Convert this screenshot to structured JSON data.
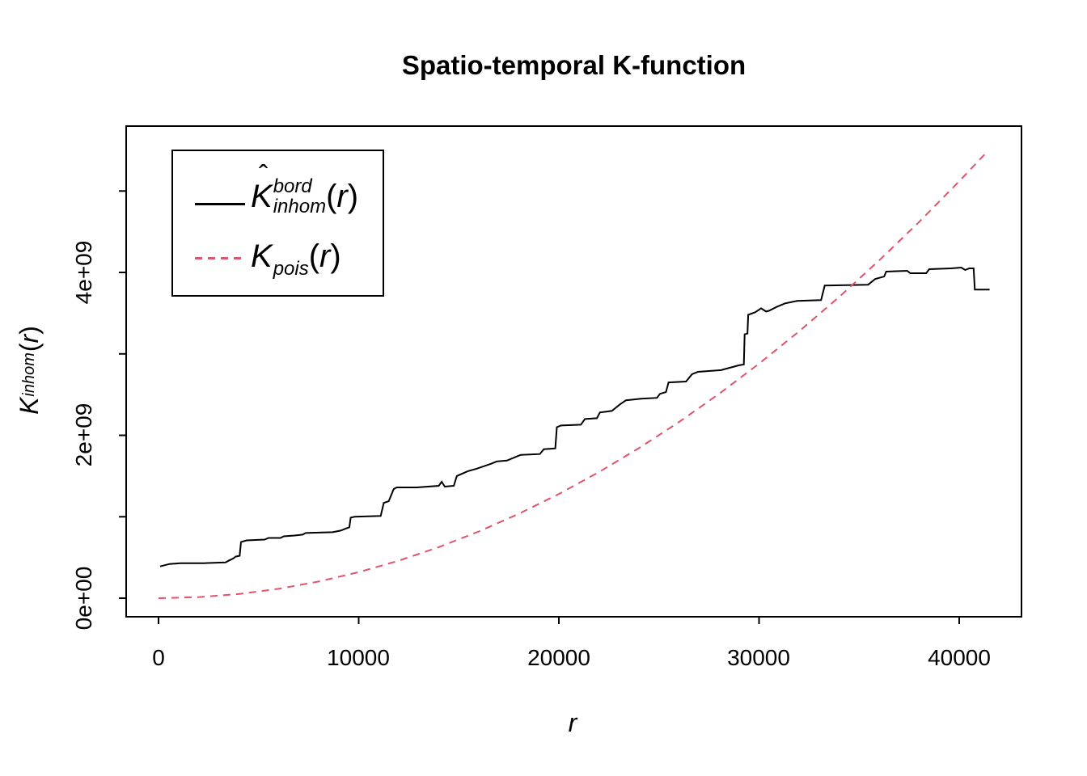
{
  "figure": {
    "background": "#ffffff",
    "frame_color": "#000000"
  },
  "chart_data": {
    "type": "line",
    "title": "Spatio-temporal K-function",
    "xlabel": "r",
    "ylabel": "K[inhom](r)",
    "grid": false,
    "legend_position": "topleft",
    "x_axis": {
      "min": -1617,
      "max": 43111,
      "ticks": [
        {
          "value": 0,
          "label": "0"
        },
        {
          "value": 10000,
          "label": "10000"
        },
        {
          "value": 20000,
          "label": "20000"
        },
        {
          "value": 30000,
          "label": "30000"
        },
        {
          "value": 40000,
          "label": "40000"
        }
      ]
    },
    "y_axis": {
      "min": -228000000,
      "max": 5797000000,
      "ticks": [
        {
          "value": 0,
          "label": "0e+00"
        },
        {
          "value": 1000000000.0,
          "label": ""
        },
        {
          "value": 2000000000.0,
          "label": "2e+09"
        },
        {
          "value": 3000000000.0,
          "label": ""
        },
        {
          "value": 4000000000.0,
          "label": "4e+09"
        },
        {
          "value": 5000000000.0,
          "label": ""
        }
      ]
    },
    "series": [
      {
        "name": "Khat-inhom-bord-estimate",
        "line": "solid",
        "color": "#000000",
        "width": 2,
        "points": [
          [
            80,
            390000000.0
          ],
          [
            550,
            420000000.0
          ],
          [
            1100,
            430000000.0
          ],
          [
            2300,
            430000000.0
          ],
          [
            3350,
            440000000.0
          ],
          [
            3500,
            460000000.0
          ],
          [
            3750,
            490000000.0
          ],
          [
            3850,
            510000000.0
          ],
          [
            4050,
            520000000.0
          ],
          [
            4120,
            690000000.0
          ],
          [
            4400,
            710000000.0
          ],
          [
            5300,
            720000000.0
          ],
          [
            5500,
            740000000.0
          ],
          [
            6100,
            740000000.0
          ],
          [
            6250,
            760000000.0
          ],
          [
            6800,
            770000000.0
          ],
          [
            7200,
            780000000.0
          ],
          [
            7350,
            800000000.0
          ],
          [
            8700,
            810000000.0
          ],
          [
            9100,
            830000000.0
          ],
          [
            9400,
            860000000.0
          ],
          [
            9530,
            870000000.0
          ],
          [
            9600,
            990000000.0
          ],
          [
            9800,
            1000000000.0
          ],
          [
            11100,
            1010000000.0
          ],
          [
            11250,
            1170000000.0
          ],
          [
            11500,
            1190000000.0
          ],
          [
            11750,
            1340000000.0
          ],
          [
            11900,
            1360000000.0
          ],
          [
            12900,
            1360000000.0
          ],
          [
            14000,
            1380000000.0
          ],
          [
            14150,
            1430000000.0
          ],
          [
            14300,
            1370000000.0
          ],
          [
            14750,
            1380000000.0
          ],
          [
            14900,
            1500000000.0
          ],
          [
            15450,
            1560000000.0
          ],
          [
            15900,
            1590000000.0
          ],
          [
            16600,
            1650000000.0
          ],
          [
            16900,
            1680000000.0
          ],
          [
            17400,
            1690000000.0
          ],
          [
            17900,
            1740000000.0
          ],
          [
            18100,
            1760000000.0
          ],
          [
            19050,
            1770000000.0
          ],
          [
            19250,
            1830000000.0
          ],
          [
            19820,
            1840000000.0
          ],
          [
            19900,
            2100000000.0
          ],
          [
            20100,
            2120000000.0
          ],
          [
            21100,
            2130000000.0
          ],
          [
            21300,
            2200000000.0
          ],
          [
            21900,
            2210000000.0
          ],
          [
            22050,
            2280000000.0
          ],
          [
            22650,
            2300000000.0
          ],
          [
            23050,
            2380000000.0
          ],
          [
            23350,
            2430000000.0
          ],
          [
            24100,
            2450000000.0
          ],
          [
            24900,
            2460000000.0
          ],
          [
            25050,
            2510000000.0
          ],
          [
            25350,
            2530000000.0
          ],
          [
            25480,
            2650000000.0
          ],
          [
            26350,
            2660000000.0
          ],
          [
            26650,
            2750000000.0
          ],
          [
            26950,
            2780000000.0
          ],
          [
            28100,
            2800000000.0
          ],
          [
            29000,
            2860000000.0
          ],
          [
            29240,
            2870000000.0
          ],
          [
            29280,
            3240000000.0
          ],
          [
            29420,
            3250000000.0
          ],
          [
            29460,
            3480000000.0
          ],
          [
            29800,
            3510000000.0
          ],
          [
            30100,
            3560000000.0
          ],
          [
            30350,
            3520000000.0
          ],
          [
            30500,
            3530000000.0
          ],
          [
            30900,
            3580000000.0
          ],
          [
            31300,
            3620000000.0
          ],
          [
            31900,
            3650000000.0
          ],
          [
            33100,
            3660000000.0
          ],
          [
            33280,
            3840000000.0
          ],
          [
            35450,
            3850000000.0
          ],
          [
            35800,
            3920000000.0
          ],
          [
            36250,
            3950000000.0
          ],
          [
            36350,
            4010000000.0
          ],
          [
            37400,
            4020000000.0
          ],
          [
            37550,
            3990000000.0
          ],
          [
            38350,
            3990000000.0
          ],
          [
            38500,
            4040000000.0
          ],
          [
            39600,
            4050000000.0
          ],
          [
            40100,
            4060000000.0
          ],
          [
            40300,
            4030000000.0
          ],
          [
            40500,
            4050000000.0
          ],
          [
            40720,
            4050000000.0
          ],
          [
            40780,
            3790000000.0
          ],
          [
            41520,
            3790000000.0
          ]
        ]
      },
      {
        "name": "K-pois-theoretical",
        "line": "dashed",
        "color": "#DF536B",
        "width": 2,
        "dash": [
          9,
          7
        ],
        "points": [
          [
            0,
            0
          ],
          [
            2000,
            12800000.0
          ],
          [
            4000,
            51200000.0
          ],
          [
            6000,
            115000000.0
          ],
          [
            8000,
            205000000.0
          ],
          [
            10000,
            320000000.0
          ],
          [
            12000,
            461000000.0
          ],
          [
            14000,
            627000000.0
          ],
          [
            16000,
            819000000.0
          ],
          [
            18000,
            1037000000.0
          ],
          [
            20000,
            1280000000.0
          ],
          [
            22000,
            1549000000.0
          ],
          [
            24000,
            1843000000.0
          ],
          [
            26000,
            2163000000.0
          ],
          [
            28000,
            2509000000.0
          ],
          [
            30000,
            2880000000.0
          ],
          [
            32000,
            3277000000.0
          ],
          [
            34000,
            3699000000.0
          ],
          [
            36000,
            4147000000.0
          ],
          [
            38000,
            4621000000.0
          ],
          [
            40000,
            5120000000.0
          ],
          [
            41350,
            5470000000.0
          ]
        ]
      }
    ]
  },
  "legend": {
    "items": [
      {
        "main": "K",
        "hat": "ˆ",
        "sup": "bord",
        "sub": "inhom",
        "arg_open": "(",
        "arg_var": "r",
        "arg_close": ")"
      },
      {
        "main": "K",
        "hat": "",
        "sup": "",
        "sub": "pois",
        "arg_open": "(",
        "arg_var": "r",
        "arg_close": ")"
      }
    ]
  },
  "axis_labels": {
    "x_var": "r",
    "y_main": "K",
    "y_sub": "inhom",
    "y_open": "(",
    "y_var": "r",
    "y_close": ")"
  }
}
